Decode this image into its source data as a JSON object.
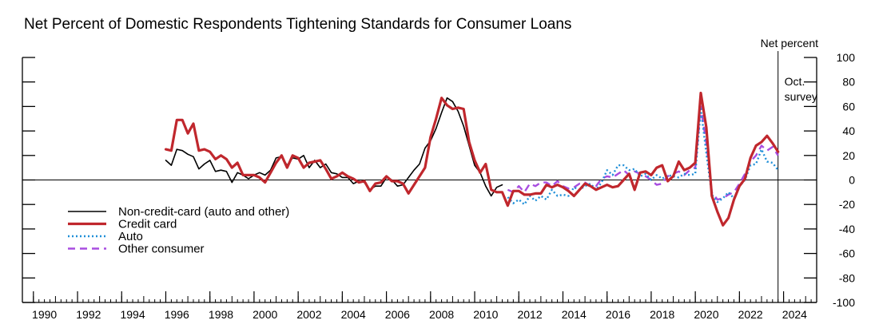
{
  "chart_data": {
    "type": "line",
    "title": "Net Percent of Domestic Respondents Tightening Standards for Consumer Loans",
    "ylabel": "Net percent",
    "xlim": [
      1989.5,
      2025.5
    ],
    "ylim": [
      -100,
      100
    ],
    "x_ticks": [
      1990,
      1992,
      1994,
      1996,
      1998,
      2000,
      2002,
      2004,
      2006,
      2008,
      2010,
      2012,
      2014,
      2016,
      2018,
      2020,
      2022,
      2024
    ],
    "y_ticks": [
      100,
      80,
      60,
      40,
      20,
      0,
      -20,
      -40,
      -60,
      -80,
      -100
    ],
    "annotation": {
      "x": 2023.75,
      "line1": "Oct.",
      "line2": "survey"
    },
    "legend_placement": "bottom-left",
    "series": [
      {
        "name": "Non-credit-card (auto and other)",
        "color": "#000000",
        "style": "solid",
        "points": [
          [
            1996.0,
            16
          ],
          [
            1996.25,
            12
          ],
          [
            1996.5,
            25
          ],
          [
            1996.75,
            24
          ],
          [
            1997.0,
            21
          ],
          [
            1997.25,
            19
          ],
          [
            1997.5,
            9
          ],
          [
            1997.75,
            13
          ],
          [
            1998.0,
            16
          ],
          [
            1998.25,
            7
          ],
          [
            1998.5,
            8
          ],
          [
            1998.75,
            7
          ],
          [
            1999.0,
            -2
          ],
          [
            1999.25,
            6
          ],
          [
            1999.5,
            4
          ],
          [
            1999.75,
            1
          ],
          [
            2000.0,
            4
          ],
          [
            2000.25,
            6
          ],
          [
            2000.5,
            4
          ],
          [
            2000.75,
            8
          ],
          [
            2001.0,
            18
          ],
          [
            2001.25,
            19
          ],
          [
            2001.5,
            12
          ],
          [
            2001.75,
            18
          ],
          [
            2002.0,
            17
          ],
          [
            2002.25,
            20
          ],
          [
            2002.5,
            10
          ],
          [
            2002.75,
            16
          ],
          [
            2003.0,
            10
          ],
          [
            2003.25,
            13
          ],
          [
            2003.5,
            6
          ],
          [
            2003.75,
            5
          ],
          [
            2004.0,
            2
          ],
          [
            2004.25,
            2
          ],
          [
            2004.5,
            -3
          ],
          [
            2004.75,
            -1
          ],
          [
            2005.0,
            -2
          ],
          [
            2005.25,
            -8
          ],
          [
            2005.5,
            -5
          ],
          [
            2005.75,
            -5
          ],
          [
            2006.0,
            2
          ],
          [
            2006.25,
            0
          ],
          [
            2006.5,
            -5
          ],
          [
            2006.75,
            -4
          ],
          [
            2007.0,
            2
          ],
          [
            2007.25,
            8
          ],
          [
            2007.5,
            13
          ],
          [
            2007.75,
            26
          ],
          [
            2008.0,
            32
          ],
          [
            2008.25,
            42
          ],
          [
            2008.5,
            55
          ],
          [
            2008.75,
            67
          ],
          [
            2009.0,
            64
          ],
          [
            2009.25,
            56
          ],
          [
            2009.5,
            44
          ],
          [
            2009.75,
            28
          ],
          [
            2010.0,
            12
          ],
          [
            2010.25,
            6
          ],
          [
            2010.5,
            -5
          ],
          [
            2010.75,
            -13
          ],
          [
            2011.0,
            -6
          ],
          [
            2011.25,
            -4
          ]
        ]
      },
      {
        "name": "Credit card",
        "color": "#c0272d",
        "style": "solid",
        "points": [
          [
            1996.0,
            25
          ],
          [
            1996.25,
            24
          ],
          [
            1996.5,
            49
          ],
          [
            1996.75,
            49
          ],
          [
            1997.0,
            38
          ],
          [
            1997.25,
            46
          ],
          [
            1997.5,
            24
          ],
          [
            1997.75,
            25
          ],
          [
            1998.0,
            23
          ],
          [
            1998.25,
            17
          ],
          [
            1998.5,
            20
          ],
          [
            1998.75,
            17
          ],
          [
            1999.0,
            10
          ],
          [
            1999.25,
            14
          ],
          [
            1999.5,
            4
          ],
          [
            1999.75,
            4
          ],
          [
            2000.0,
            4
          ],
          [
            2000.25,
            2
          ],
          [
            2000.5,
            -2
          ],
          [
            2000.75,
            6
          ],
          [
            2001.0,
            14
          ],
          [
            2001.25,
            20
          ],
          [
            2001.5,
            10
          ],
          [
            2001.75,
            20
          ],
          [
            2002.0,
            18
          ],
          [
            2002.25,
            10
          ],
          [
            2002.5,
            14
          ],
          [
            2002.75,
            15
          ],
          [
            2003.0,
            16
          ],
          [
            2003.25,
            9
          ],
          [
            2003.5,
            1
          ],
          [
            2003.75,
            3
          ],
          [
            2004.0,
            6
          ],
          [
            2004.25,
            3
          ],
          [
            2004.5,
            1
          ],
          [
            2004.75,
            -2
          ],
          [
            2005.0,
            -1
          ],
          [
            2005.25,
            -9
          ],
          [
            2005.5,
            -3
          ],
          [
            2005.75,
            -2
          ],
          [
            2006.0,
            3
          ],
          [
            2006.25,
            -1
          ],
          [
            2006.5,
            -1
          ],
          [
            2006.75,
            -3
          ],
          [
            2007.0,
            -11
          ],
          [
            2007.25,
            -4
          ],
          [
            2007.5,
            3
          ],
          [
            2007.75,
            10
          ],
          [
            2008.0,
            35
          ],
          [
            2008.25,
            50
          ],
          [
            2008.5,
            67
          ],
          [
            2008.75,
            61
          ],
          [
            2009.0,
            58
          ],
          [
            2009.25,
            59
          ],
          [
            2009.5,
            58
          ],
          [
            2009.75,
            31
          ],
          [
            2010.0,
            16
          ],
          [
            2010.25,
            6
          ],
          [
            2010.5,
            13
          ],
          [
            2010.75,
            -8
          ],
          [
            2011.0,
            -10
          ],
          [
            2011.25,
            -10
          ],
          [
            2011.5,
            -21
          ],
          [
            2011.75,
            -9
          ],
          [
            2012.0,
            -9
          ],
          [
            2012.25,
            -12
          ],
          [
            2012.5,
            -12
          ],
          [
            2012.75,
            -11
          ],
          [
            2013.0,
            -11
          ],
          [
            2013.25,
            -4
          ],
          [
            2013.5,
            -6
          ],
          [
            2013.75,
            -4
          ],
          [
            2014.0,
            -6
          ],
          [
            2014.25,
            -9
          ],
          [
            2014.5,
            -13
          ],
          [
            2014.75,
            -8
          ],
          [
            2015.0,
            -3
          ],
          [
            2015.25,
            -5
          ],
          [
            2015.5,
            -8
          ],
          [
            2015.75,
            -6
          ],
          [
            2016.0,
            -4
          ],
          [
            2016.25,
            -6
          ],
          [
            2016.5,
            -5
          ],
          [
            2016.75,
            0
          ],
          [
            2017.0,
            5
          ],
          [
            2017.25,
            -8
          ],
          [
            2017.5,
            6
          ],
          [
            2017.75,
            7
          ],
          [
            2018.0,
            4
          ],
          [
            2018.25,
            10
          ],
          [
            2018.5,
            12
          ],
          [
            2018.75,
            -1
          ],
          [
            2019.0,
            3
          ],
          [
            2019.25,
            15
          ],
          [
            2019.5,
            8
          ],
          [
            2019.75,
            10
          ],
          [
            2020.0,
            14
          ],
          [
            2020.25,
            71
          ],
          [
            2020.5,
            43
          ],
          [
            2020.75,
            -13
          ],
          [
            2021.0,
            -26
          ],
          [
            2021.25,
            -37
          ],
          [
            2021.5,
            -31
          ],
          [
            2021.75,
            -16
          ],
          [
            2022.0,
            -5
          ],
          [
            2022.25,
            1
          ],
          [
            2022.5,
            18
          ],
          [
            2022.75,
            28
          ],
          [
            2023.0,
            31
          ],
          [
            2023.25,
            36
          ],
          [
            2023.5,
            30
          ],
          [
            2023.75,
            23
          ]
        ]
      },
      {
        "name": "Auto",
        "color": "#1f8fd8",
        "style": "dotted",
        "points": [
          [
            2011.5,
            -14
          ],
          [
            2011.75,
            -19
          ],
          [
            2012.0,
            -16
          ],
          [
            2012.25,
            -20
          ],
          [
            2012.5,
            -13
          ],
          [
            2012.75,
            -17
          ],
          [
            2013.0,
            -13
          ],
          [
            2013.25,
            -16
          ],
          [
            2013.5,
            -8
          ],
          [
            2013.75,
            -13
          ],
          [
            2014.0,
            -12
          ],
          [
            2014.25,
            -13
          ],
          [
            2014.5,
            -6
          ],
          [
            2014.75,
            -8
          ],
          [
            2015.0,
            -5
          ],
          [
            2015.25,
            -3
          ],
          [
            2015.5,
            -8
          ],
          [
            2015.75,
            -2
          ],
          [
            2016.0,
            8
          ],
          [
            2016.25,
            4
          ],
          [
            2016.5,
            12
          ],
          [
            2016.75,
            12
          ],
          [
            2017.0,
            8
          ],
          [
            2017.25,
            9
          ],
          [
            2017.5,
            3
          ],
          [
            2017.75,
            5
          ],
          [
            2018.0,
            0
          ],
          [
            2018.25,
            4
          ],
          [
            2018.5,
            1
          ],
          [
            2018.75,
            4
          ],
          [
            2019.0,
            3
          ],
          [
            2019.25,
            2
          ],
          [
            2019.5,
            5
          ],
          [
            2019.75,
            4
          ],
          [
            2020.0,
            5
          ],
          [
            2020.25,
            58
          ],
          [
            2020.5,
            22
          ],
          [
            2020.75,
            -12
          ],
          [
            2021.0,
            -18
          ],
          [
            2021.25,
            -15
          ],
          [
            2021.5,
            -10
          ],
          [
            2021.75,
            -15
          ],
          [
            2022.0,
            -5
          ],
          [
            2022.25,
            0
          ],
          [
            2022.5,
            12
          ],
          [
            2022.75,
            13
          ],
          [
            2023.0,
            25
          ],
          [
            2023.25,
            15
          ],
          [
            2023.5,
            14
          ],
          [
            2023.75,
            8
          ]
        ]
      },
      {
        "name": "Other consumer",
        "color": "#a84de0",
        "style": "dashed",
        "points": [
          [
            2011.5,
            -8
          ],
          [
            2011.75,
            -10
          ],
          [
            2012.0,
            -5
          ],
          [
            2012.25,
            -10
          ],
          [
            2012.5,
            -3
          ],
          [
            2012.75,
            -5
          ],
          [
            2013.0,
            -2
          ],
          [
            2013.25,
            -2
          ],
          [
            2013.5,
            -5
          ],
          [
            2013.75,
            -1
          ],
          [
            2014.0,
            -5
          ],
          [
            2014.25,
            -7
          ],
          [
            2014.5,
            -6
          ],
          [
            2014.75,
            -3
          ],
          [
            2015.0,
            -2
          ],
          [
            2015.25,
            -5
          ],
          [
            2015.5,
            -5
          ],
          [
            2015.75,
            1
          ],
          [
            2016.0,
            3
          ],
          [
            2016.25,
            2
          ],
          [
            2016.5,
            5
          ],
          [
            2016.75,
            8
          ],
          [
            2017.0,
            4
          ],
          [
            2017.25,
            7
          ],
          [
            2017.5,
            5
          ],
          [
            2017.75,
            3
          ],
          [
            2018.0,
            0
          ],
          [
            2018.25,
            -4
          ],
          [
            2018.5,
            -3
          ],
          [
            2018.75,
            3
          ],
          [
            2019.0,
            5
          ],
          [
            2019.25,
            7
          ],
          [
            2019.5,
            4
          ],
          [
            2019.75,
            8
          ],
          [
            2020.0,
            10
          ],
          [
            2020.25,
            60
          ],
          [
            2020.5,
            30
          ],
          [
            2020.75,
            -10
          ],
          [
            2021.0,
            -16
          ],
          [
            2021.25,
            -15
          ],
          [
            2021.5,
            -12
          ],
          [
            2021.75,
            -10
          ],
          [
            2022.0,
            -3
          ],
          [
            2022.25,
            5
          ],
          [
            2022.5,
            15
          ],
          [
            2022.75,
            20
          ],
          [
            2023.0,
            28
          ],
          [
            2023.25,
            24
          ],
          [
            2023.5,
            27
          ],
          [
            2023.75,
            20
          ]
        ]
      }
    ]
  }
}
